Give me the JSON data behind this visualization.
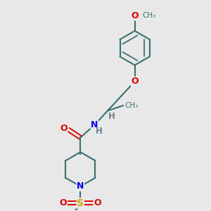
{
  "bg_color": "#e8e8e8",
  "bond_color": "#3a7070",
  "bond_width": 1.5,
  "atom_colors": {
    "O": "#dd0000",
    "N": "#0000ee",
    "S": "#ccaa00",
    "H": "#708090"
  },
  "figsize": [
    3.0,
    3.0
  ],
  "dpi": 100
}
